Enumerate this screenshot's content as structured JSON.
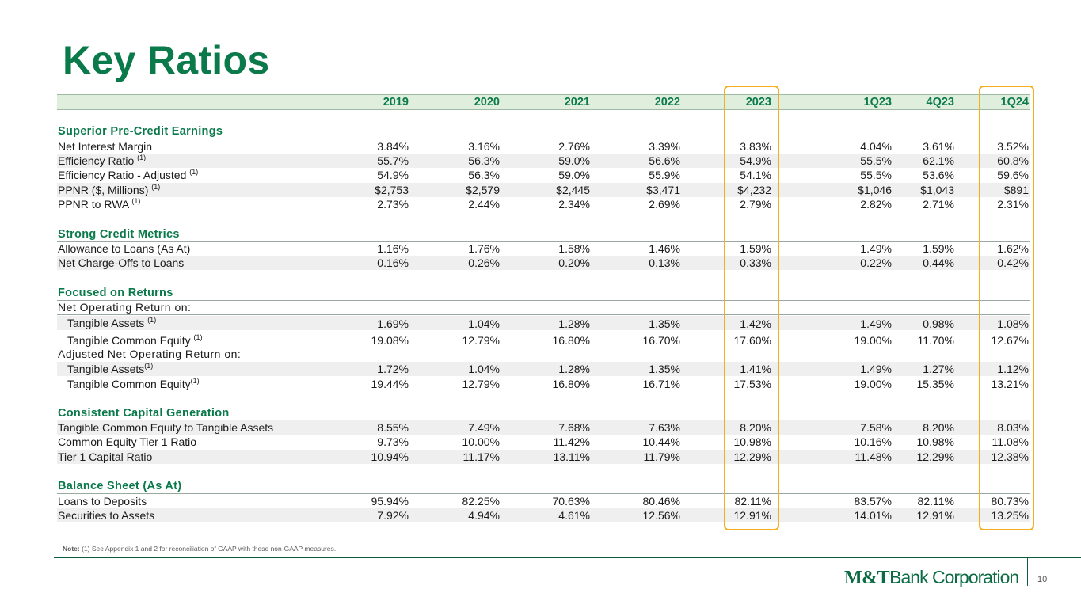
{
  "title": "Key Ratios",
  "columns": [
    "2019",
    "2020",
    "2021",
    "2022",
    "2023",
    "1Q23",
    "4Q23",
    "1Q24"
  ],
  "sections": {
    "s1": {
      "title": "Superior Pre-Credit Earnings"
    },
    "s2": {
      "title": "Strong Credit Metrics"
    },
    "s3": {
      "title": "Focused on Returns",
      "sub1": "Net Operating Return on:",
      "sub2": "Adjusted Net Operating Return on:"
    },
    "s4": {
      "title": "Consistent Capital Generation"
    },
    "s5": {
      "title": "Balance Sheet (As At)"
    }
  },
  "rows": {
    "nim": {
      "label": "Net Interest Margin",
      "values": [
        "3.84%",
        "3.16%",
        "2.76%",
        "3.39%",
        "3.83%",
        "4.04%",
        "3.61%",
        "3.52%"
      ]
    },
    "eff": {
      "label": "Efficiency Ratio",
      "note": "(1)",
      "values": [
        "55.7%",
        "56.3%",
        "59.0%",
        "56.6%",
        "54.9%",
        "55.5%",
        "62.1%",
        "60.8%"
      ]
    },
    "effadj": {
      "label": "Efficiency Ratio - Adjusted",
      "note": "(1)",
      "values": [
        "54.9%",
        "56.3%",
        "59.0%",
        "55.9%",
        "54.1%",
        "55.5%",
        "53.6%",
        "59.6%"
      ]
    },
    "ppnr": {
      "label": "PPNR ($, Millions)",
      "note": "(1)",
      "values": [
        "$2,753",
        "$2,579",
        "$2,445",
        "$3,471",
        "$4,232",
        "$1,046",
        "$1,043",
        "$891"
      ]
    },
    "ppnrrwa": {
      "label": "PPNR to RWA",
      "note": "(1)",
      "values": [
        "2.73%",
        "2.44%",
        "2.34%",
        "2.69%",
        "2.79%",
        "2.82%",
        "2.71%",
        "2.31%"
      ]
    },
    "allow": {
      "label": "Allowance to Loans (As At)",
      "values": [
        "1.16%",
        "1.76%",
        "1.58%",
        "1.46%",
        "1.59%",
        "1.49%",
        "1.59%",
        "1.62%"
      ]
    },
    "nco": {
      "label": "Net Charge-Offs to Loans",
      "values": [
        "0.16%",
        "0.26%",
        "0.20%",
        "0.13%",
        "0.33%",
        "0.22%",
        "0.44%",
        "0.42%"
      ]
    },
    "ta1": {
      "label": "Tangible Assets",
      "note": "(1)",
      "values": [
        "1.69%",
        "1.04%",
        "1.28%",
        "1.35%",
        "1.42%",
        "1.49%",
        "0.98%",
        "1.08%"
      ]
    },
    "tce1": {
      "label": "Tangible Common Equity",
      "note": "(1)",
      "values": [
        "19.08%",
        "12.79%",
        "16.80%",
        "16.70%",
        "17.60%",
        "19.00%",
        "11.70%",
        "12.67%"
      ]
    },
    "ta2": {
      "label": "Tangible Assets",
      "note": "(1)",
      "values": [
        "1.72%",
        "1.04%",
        "1.28%",
        "1.35%",
        "1.41%",
        "1.49%",
        "1.27%",
        "1.12%"
      ]
    },
    "tce2": {
      "label": "Tangible Common Equity",
      "note": "(1)",
      "values": [
        "19.44%",
        "12.79%",
        "16.80%",
        "16.71%",
        "17.53%",
        "19.00%",
        "15.35%",
        "13.21%"
      ]
    },
    "tceta": {
      "label": "Tangible Common Equity to Tangible Assets",
      "values": [
        "8.55%",
        "7.49%",
        "7.68%",
        "7.63%",
        "8.20%",
        "7.58%",
        "8.20%",
        "8.03%"
      ]
    },
    "cet1": {
      "label": "Common Equity Tier 1 Ratio",
      "values": [
        "9.73%",
        "10.00%",
        "11.42%",
        "10.44%",
        "10.98%",
        "10.16%",
        "10.98%",
        "11.08%"
      ]
    },
    "t1": {
      "label": "Tier 1 Capital Ratio",
      "values": [
        "10.94%",
        "11.17%",
        "13.11%",
        "11.79%",
        "12.29%",
        "11.48%",
        "12.29%",
        "12.38%"
      ]
    },
    "ltd": {
      "label": "Loans to Deposits",
      "values": [
        "95.94%",
        "82.25%",
        "70.63%",
        "80.46%",
        "82.11%",
        "83.57%",
        "82.11%",
        "80.73%"
      ]
    },
    "sec": {
      "label": "Securities to Assets",
      "values": [
        "7.92%",
        "4.94%",
        "4.61%",
        "12.56%",
        "12.91%",
        "14.01%",
        "12.91%",
        "13.25%"
      ]
    }
  },
  "note": {
    "prefix": "Note:",
    "text": "(1) See Appendix 1 and 2 for reconciliation of GAAP with these non-GAAP measures."
  },
  "logo": {
    "mark": "M&T",
    "text": "Bank Corporation"
  },
  "page_number": "10"
}
